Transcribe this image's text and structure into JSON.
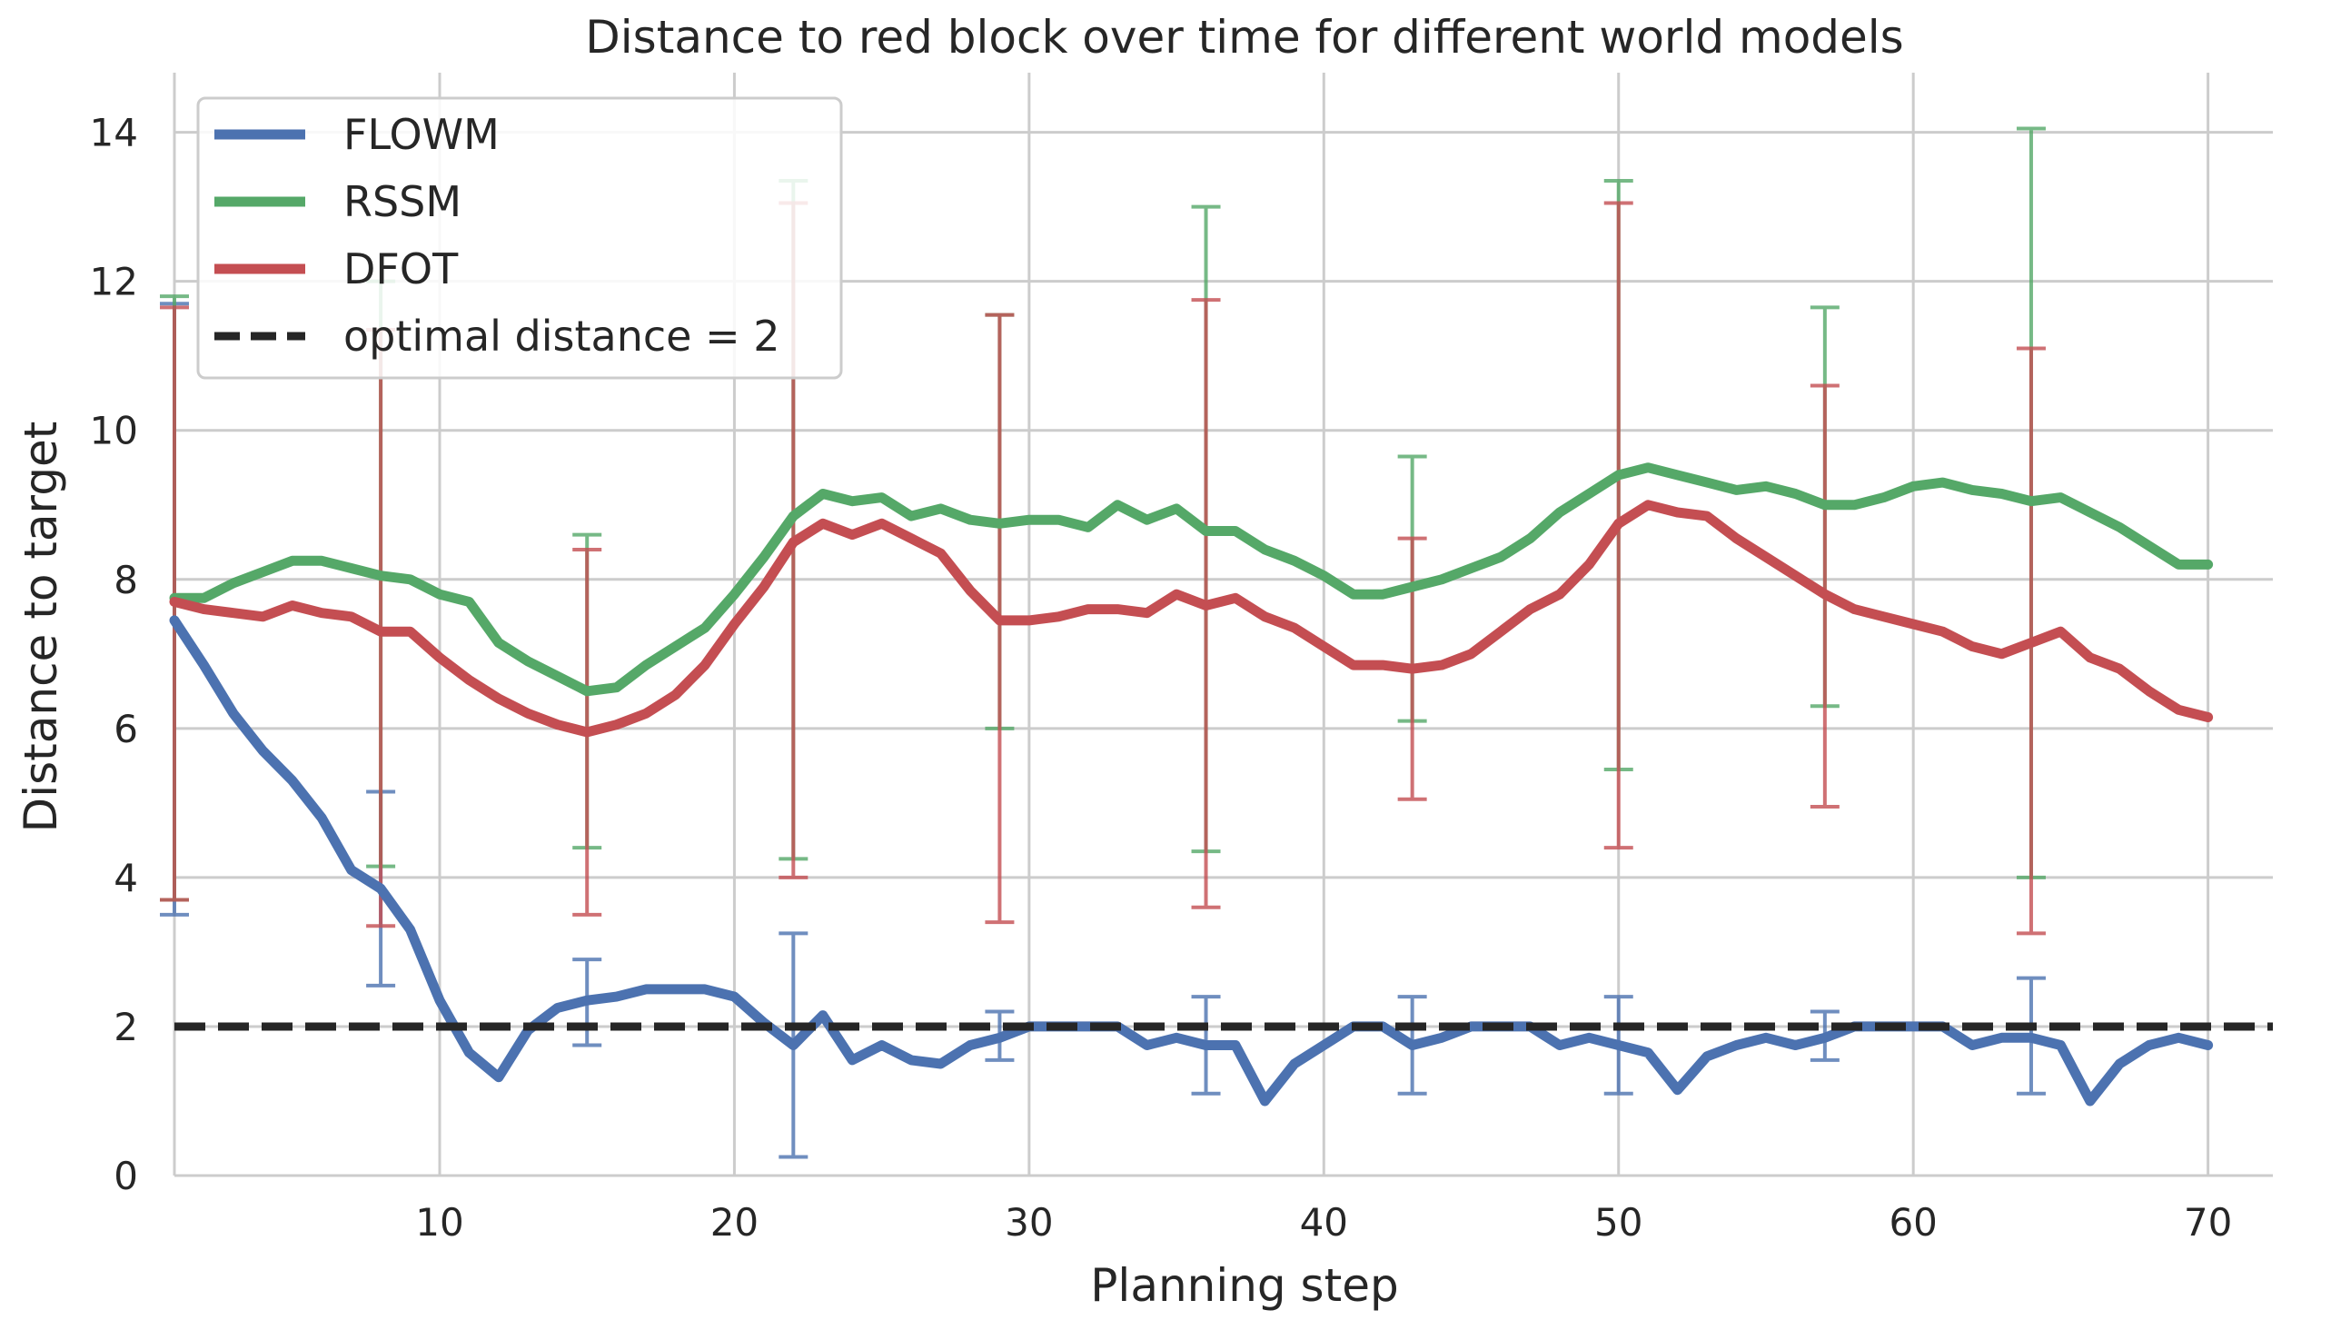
{
  "chart_data": {
    "type": "line",
    "title": "Distance to red block over time for different world models",
    "xlabel": "Planning step",
    "ylabel": "Distance to target",
    "xlim": [
      1,
      72.2
    ],
    "ylim": [
      0,
      14.8
    ],
    "xticks": [
      10,
      20,
      30,
      40,
      50,
      60,
      70
    ],
    "yticks": [
      0,
      2,
      4,
      6,
      8,
      10,
      12,
      14
    ],
    "grid": true,
    "legend_position": "top-left",
    "x": [
      1,
      2,
      3,
      4,
      5,
      6,
      7,
      8,
      9,
      10,
      11,
      12,
      13,
      14,
      15,
      16,
      17,
      18,
      19,
      20,
      21,
      22,
      23,
      24,
      25,
      26,
      27,
      28,
      29,
      30,
      31,
      32,
      33,
      34,
      35,
      36,
      37,
      38,
      39,
      40,
      41,
      42,
      43,
      44,
      45,
      46,
      47,
      48,
      49,
      50,
      51,
      52,
      53,
      54,
      55,
      56,
      57,
      58,
      59,
      60,
      61,
      62,
      63,
      64,
      65,
      66,
      67,
      68,
      69,
      70
    ],
    "series": [
      {
        "name": "FLOWM",
        "color": "#4c72b0",
        "values": [
          7.45,
          6.85,
          6.2,
          5.7,
          5.3,
          4.8,
          4.1,
          3.85,
          3.3,
          2.35,
          1.65,
          1.32,
          1.95,
          2.25,
          2.35,
          2.4,
          2.5,
          2.5,
          2.5,
          2.4,
          2.05,
          1.75,
          2.15,
          1.55,
          1.75,
          1.55,
          1.5,
          1.75,
          1.85,
          2.0,
          2.0,
          2.0,
          2.0,
          1.75,
          1.85,
          1.75,
          1.75,
          1.0,
          1.5,
          1.75,
          2.0,
          2.0,
          1.75,
          1.85,
          2.0,
          2.0,
          2.0,
          1.75,
          1.85,
          1.75,
          1.65,
          1.15,
          1.6,
          1.75,
          1.85,
          1.75,
          1.85,
          2.0,
          2.0,
          2.0,
          2.0,
          1.75,
          1.85,
          1.85,
          1.75,
          1.0,
          1.5,
          1.75,
          1.85,
          1.75
        ],
        "errorbars": [
          {
            "x": 1,
            "low": 3.5,
            "high": 11.7
          },
          {
            "x": 8,
            "low": 2.55,
            "high": 5.15
          },
          {
            "x": 15,
            "low": 1.75,
            "high": 2.9
          },
          {
            "x": 22,
            "low": 0.25,
            "high": 3.25
          },
          {
            "x": 29,
            "low": 1.55,
            "high": 2.2
          },
          {
            "x": 36,
            "low": 1.1,
            "high": 2.4
          },
          {
            "x": 43,
            "low": 1.1,
            "high": 2.4
          },
          {
            "x": 50,
            "low": 1.1,
            "high": 2.4
          },
          {
            "x": 57,
            "low": 1.55,
            "high": 2.2
          },
          {
            "x": 64,
            "low": 1.1,
            "high": 2.65
          }
        ]
      },
      {
        "name": "RSSM",
        "color": "#55a868",
        "values": [
          7.75,
          7.75,
          7.95,
          8.1,
          8.25,
          8.25,
          8.15,
          8.05,
          8.0,
          7.8,
          7.7,
          7.15,
          6.9,
          6.7,
          6.5,
          6.55,
          6.85,
          7.1,
          7.35,
          7.8,
          8.3,
          8.85,
          9.15,
          9.05,
          9.1,
          8.85,
          8.95,
          8.8,
          8.75,
          8.8,
          8.8,
          8.7,
          9.0,
          8.8,
          8.95,
          8.65,
          8.65,
          8.4,
          8.25,
          8.05,
          7.8,
          7.8,
          7.9,
          8.0,
          8.15,
          8.3,
          8.55,
          8.9,
          9.15,
          9.4,
          9.5,
          9.4,
          9.3,
          9.2,
          9.25,
          9.15,
          9.0,
          9.0,
          9.1,
          9.25,
          9.3,
          9.2,
          9.15,
          9.05,
          9.1,
          8.9,
          8.7,
          8.45,
          8.2,
          8.2
        ],
        "errorbars": [
          {
            "x": 1,
            "low": 3.7,
            "high": 11.8
          },
          {
            "x": 8,
            "low": 4.15,
            "high": 12.0
          },
          {
            "x": 15,
            "low": 4.4,
            "high": 8.6
          },
          {
            "x": 22,
            "low": 4.25,
            "high": 13.35
          },
          {
            "x": 29,
            "low": 6.0,
            "high": 11.55
          },
          {
            "x": 36,
            "low": 4.35,
            "high": 13.0
          },
          {
            "x": 43,
            "low": 6.1,
            "high": 9.65
          },
          {
            "x": 50,
            "low": 5.45,
            "high": 13.35
          },
          {
            "x": 57,
            "low": 6.3,
            "high": 11.65
          },
          {
            "x": 64,
            "low": 4.0,
            "high": 14.05
          }
        ]
      },
      {
        "name": "DFOT",
        "color": "#c44e52",
        "values": [
          7.7,
          7.6,
          7.55,
          7.5,
          7.65,
          7.55,
          7.5,
          7.3,
          7.3,
          6.95,
          6.65,
          6.4,
          6.2,
          6.05,
          5.95,
          6.05,
          6.2,
          6.45,
          6.85,
          7.4,
          7.9,
          8.5,
          8.75,
          8.6,
          8.75,
          8.55,
          8.35,
          7.85,
          7.45,
          7.45,
          7.5,
          7.6,
          7.6,
          7.55,
          7.8,
          7.65,
          7.75,
          7.5,
          7.35,
          7.1,
          6.85,
          6.85,
          6.8,
          6.85,
          7.0,
          7.3,
          7.6,
          7.8,
          8.2,
          8.75,
          9.0,
          8.9,
          8.85,
          8.55,
          8.3,
          8.05,
          7.8,
          7.6,
          7.5,
          7.4,
          7.3,
          7.1,
          7.0,
          7.15,
          7.3,
          6.95,
          6.8,
          6.5,
          6.25,
          6.15
        ],
        "errorbars": [
          {
            "x": 1,
            "low": 3.7,
            "high": 11.65
          },
          {
            "x": 8,
            "low": 3.35,
            "high": 11.35
          },
          {
            "x": 15,
            "low": 3.5,
            "high": 8.4
          },
          {
            "x": 22,
            "low": 4.0,
            "high": 13.05
          },
          {
            "x": 29,
            "low": 3.4,
            "high": 11.55
          },
          {
            "x": 36,
            "low": 3.6,
            "high": 11.75
          },
          {
            "x": 43,
            "low": 5.05,
            "high": 8.55
          },
          {
            "x": 50,
            "low": 4.4,
            "high": 13.05
          },
          {
            "x": 57,
            "low": 4.95,
            "high": 10.6
          },
          {
            "x": 64,
            "low": 3.25,
            "high": 11.1
          }
        ]
      }
    ],
    "reference_line": {
      "name": "optimal distance = 2",
      "y": 2,
      "color": "#262626",
      "style": "dashed"
    }
  }
}
